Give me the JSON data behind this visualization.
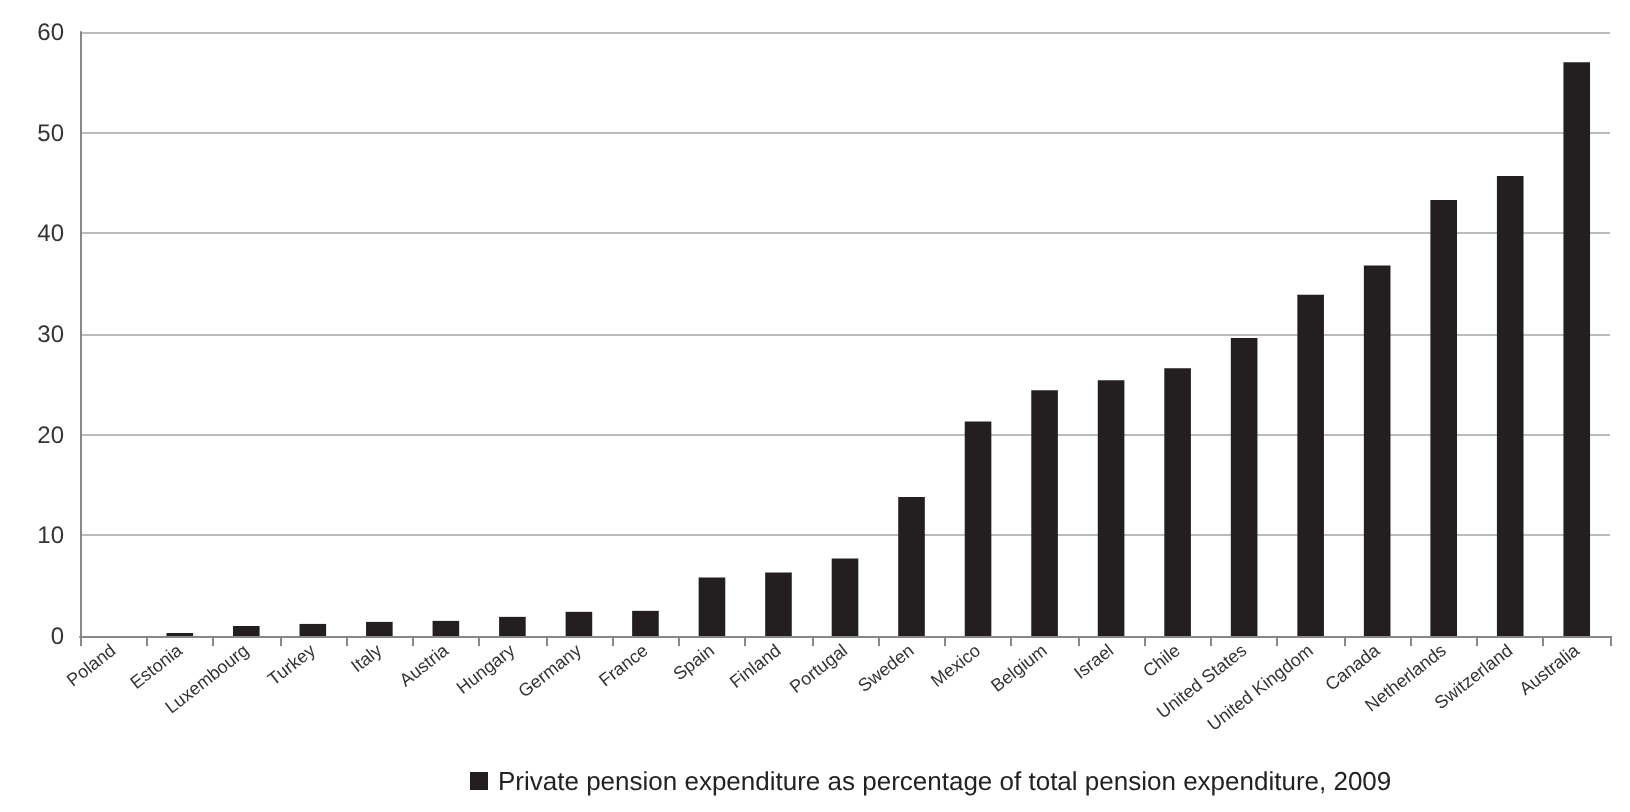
{
  "chart_data": {
    "type": "bar",
    "categories": [
      "Poland",
      "Estonia",
      "Luxembourg",
      "Turkey",
      "Italy",
      "Austria",
      "Hungary",
      "Germany",
      "France",
      "Spain",
      "Finland",
      "Portugal",
      "Sweden",
      "Mexico",
      "Belgium",
      "Israel",
      "Chile",
      "United States",
      "United Kingdom",
      "Canada",
      "Netherlands",
      "Switzerland",
      "Australia"
    ],
    "series": [
      {
        "name": "Private pension expenditure as percentage of total pension expenditure, 2009",
        "color": "#231f20",
        "values": [
          0,
          0.3,
          1.0,
          1.2,
          1.4,
          1.5,
          1.9,
          2.4,
          2.5,
          5.8,
          6.3,
          7.7,
          13.8,
          21.3,
          24.4,
          25.4,
          26.6,
          29.6,
          33.9,
          36.8,
          43.3,
          45.7,
          57.0
        ]
      }
    ],
    "ylim": [
      0,
      60
    ],
    "yticks": [
      0,
      10,
      20,
      30,
      40,
      50,
      60
    ],
    "grid": "y",
    "legend": "bottom"
  }
}
